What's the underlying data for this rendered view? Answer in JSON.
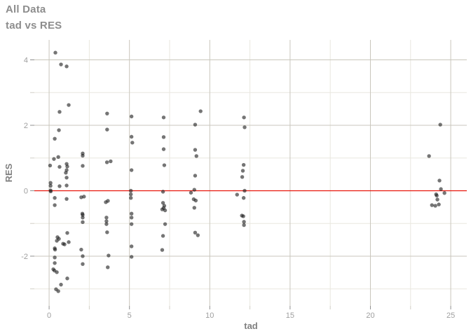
{
  "header": {
    "title": "All Data",
    "subtitle": "tad vs RES"
  },
  "axis": {
    "x_title": "tad",
    "y_title": "RES"
  },
  "colors": {
    "background": "#ffffff",
    "title_text": "#8d8d8d",
    "tick_label": "#9e9e9e",
    "axis_title": "#808080",
    "grid_major": "#c9c6bc",
    "grid_minor": "#e9e7df",
    "tick_major": "#8f8f8f",
    "tick_minor": "#d0cec6",
    "refline": "#e8150b",
    "point": "rgba(25,25,25,0.60)"
  },
  "chart_data": {
    "type": "scatter",
    "title": "All Data",
    "subtitle": "tad vs RES",
    "xlabel": "tad",
    "ylabel": "RES",
    "xlim": [
      -0.92,
      26.0
    ],
    "ylim": [
      -3.52,
      4.61
    ],
    "x_ticks_major": [
      0,
      5,
      10,
      15,
      20,
      25
    ],
    "x_ticks_minor": [
      2.5,
      7.5,
      12.5,
      17.5,
      22.5
    ],
    "y_ticks_major": [
      4,
      2,
      0,
      -2
    ],
    "y_ticks_minor": [
      3,
      1,
      -1,
      -3
    ],
    "grid": true,
    "legend_position": "none",
    "refline_y": 0,
    "points": [
      [
        0.06,
        0.77
      ],
      [
        0.09,
        0.24
      ],
      [
        0.09,
        0.15
      ],
      [
        0.09,
        0.01
      ],
      [
        0.1,
        -0.02
      ],
      [
        0.39,
        4.22
      ],
      [
        0.74,
        3.86
      ],
      [
        1.09,
        3.8
      ],
      [
        1.22,
        2.62
      ],
      [
        0.65,
        2.41
      ],
      [
        0.61,
        1.85
      ],
      [
        0.35,
        1.59
      ],
      [
        0.3,
        0.97
      ],
      [
        0.57,
        1.03
      ],
      [
        0.65,
        0.73
      ],
      [
        0.65,
        0.14
      ],
      [
        0.35,
        -0.22
      ],
      [
        0.35,
        -0.44
      ],
      [
        0.52,
        -1.42
      ],
      [
        0.61,
        -1.47
      ],
      [
        0.48,
        -1.53
      ],
      [
        0.87,
        -1.62
      ],
      [
        0.96,
        -1.64
      ],
      [
        0.35,
        -1.76
      ],
      [
        0.37,
        -1.8
      ],
      [
        0.35,
        -2.04
      ],
      [
        0.35,
        -2.21
      ],
      [
        0.26,
        -2.4
      ],
      [
        0.33,
        -2.44
      ],
      [
        0.48,
        -2.49
      ],
      [
        0.74,
        -2.87
      ],
      [
        0.43,
        -3.01
      ],
      [
        0.57,
        -3.07
      ],
      [
        1.09,
        0.82
      ],
      [
        1.13,
        0.74
      ],
      [
        1.09,
        0.63
      ],
      [
        1.04,
        0.55
      ],
      [
        1.09,
        0.4
      ],
      [
        1.09,
        0.16
      ],
      [
        1.09,
        -0.25
      ],
      [
        1.13,
        -1.29
      ],
      [
        1.22,
        -1.57
      ],
      [
        1.13,
        -2.68
      ],
      [
        2.09,
        1.14
      ],
      [
        2.09,
        1.07
      ],
      [
        2.09,
        0.76
      ],
      [
        2.0,
        -0.2
      ],
      [
        2.17,
        -0.18
      ],
      [
        2.07,
        -0.7
      ],
      [
        2.09,
        -0.74
      ],
      [
        2.09,
        -0.82
      ],
      [
        2.09,
        -0.96
      ],
      [
        2.0,
        -1.8
      ],
      [
        2.09,
        -2.0
      ],
      [
        2.09,
        -2.24
      ],
      [
        3.61,
        2.36
      ],
      [
        3.61,
        1.87
      ],
      [
        3.6,
        0.87
      ],
      [
        3.83,
        0.9
      ],
      [
        3.66,
        -0.31
      ],
      [
        3.53,
        -0.35
      ],
      [
        3.57,
        -0.82
      ],
      [
        3.57,
        -0.93
      ],
      [
        3.57,
        -1.02
      ],
      [
        3.61,
        -1.27
      ],
      [
        3.7,
        -1.98
      ],
      [
        3.65,
        -2.34
      ],
      [
        5.13,
        2.27
      ],
      [
        5.13,
        1.65
      ],
      [
        5.18,
        1.47
      ],
      [
        5.13,
        0.63
      ],
      [
        5.09,
        0.0
      ],
      [
        5.09,
        -0.11
      ],
      [
        5.09,
        -0.22
      ],
      [
        5.13,
        -0.7
      ],
      [
        5.13,
        -0.82
      ],
      [
        5.13,
        -1.02
      ],
      [
        5.13,
        -1.7
      ],
      [
        5.13,
        -2.02
      ],
      [
        7.13,
        2.24
      ],
      [
        7.13,
        1.64
      ],
      [
        7.13,
        1.27
      ],
      [
        7.17,
        0.78
      ],
      [
        7.09,
        -0.03
      ],
      [
        7.09,
        -0.37
      ],
      [
        7.17,
        -0.46
      ],
      [
        7.04,
        -0.57
      ],
      [
        7.13,
        -0.53
      ],
      [
        7.22,
        -0.6
      ],
      [
        7.22,
        -1.02
      ],
      [
        7.09,
        -1.38
      ],
      [
        7.04,
        -1.81
      ],
      [
        9.43,
        2.43
      ],
      [
        9.09,
        2.02
      ],
      [
        9.09,
        1.25
      ],
      [
        9.17,
        1.06
      ],
      [
        9.09,
        0.46
      ],
      [
        9.04,
        0.03
      ],
      [
        8.83,
        -0.06
      ],
      [
        9.0,
        -0.26
      ],
      [
        9.13,
        -0.3
      ],
      [
        9.04,
        -0.52
      ],
      [
        9.09,
        -1.28
      ],
      [
        9.26,
        -1.36
      ],
      [
        12.13,
        2.24
      ],
      [
        12.17,
        1.94
      ],
      [
        12.11,
        0.79
      ],
      [
        12.06,
        0.61
      ],
      [
        12.02,
        0.42
      ],
      [
        12.17,
        0.0
      ],
      [
        11.7,
        -0.12
      ],
      [
        12.11,
        -0.22
      ],
      [
        12.0,
        -0.76
      ],
      [
        12.09,
        -0.78
      ],
      [
        12.13,
        -0.95
      ],
      [
        12.13,
        -1.05
      ],
      [
        23.65,
        1.06
      ],
      [
        24.35,
        2.02
      ],
      [
        24.3,
        0.31
      ],
      [
        24.39,
        0.05
      ],
      [
        24.61,
        -0.07
      ],
      [
        24.09,
        -0.11
      ],
      [
        24.13,
        -0.15
      ],
      [
        24.17,
        -0.27
      ],
      [
        24.26,
        -0.42
      ],
      [
        23.83,
        -0.44
      ],
      [
        24.04,
        -0.46
      ]
    ]
  }
}
